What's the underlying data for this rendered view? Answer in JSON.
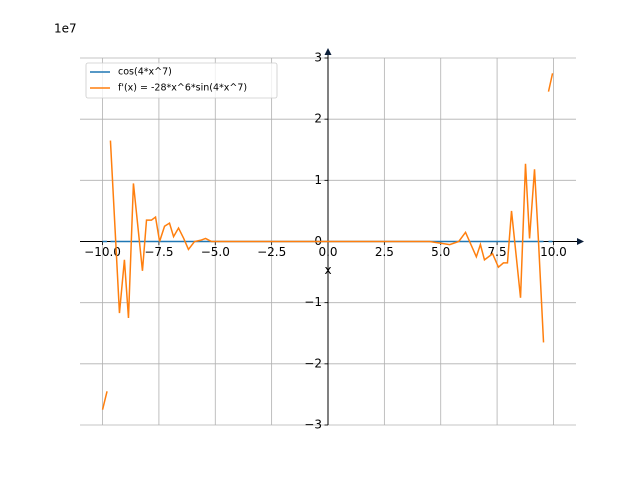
{
  "chart_data": {
    "type": "line",
    "offset_label": "1e7",
    "xlabel": "x",
    "x": [
      -10,
      -9.8,
      -9.75,
      -9.65,
      -9.25,
      -9.03,
      -8.85,
      -8.63,
      -8.23,
      -8.05,
      -7.83,
      -7.65,
      -7.47,
      -7.25,
      -7.03,
      -6.85,
      -6.63,
      -6.4,
      -6.19,
      -5.92,
      -5.65,
      -5.43,
      -5.17,
      -4.5,
      -2,
      0,
      2,
      4.5,
      5.4,
      5.8,
      6.1,
      6.58,
      6.76,
      6.94,
      7.3,
      7.56,
      7.78,
      7.96,
      8.14,
      8.54,
      8.76,
      8.94,
      9.16,
      9.33,
      9.56,
      9.7,
      9.78,
      9.96
    ],
    "series": [
      {
        "name": "cos(4*x^7)",
        "color": "#1f77b4",
        "values": [
          0,
          0,
          null,
          0,
          0,
          0,
          0,
          0,
          0,
          0,
          0,
          0,
          0,
          0,
          0,
          0,
          0,
          0,
          0,
          0,
          0,
          0,
          0,
          0,
          0,
          0,
          0,
          0,
          0,
          0,
          0,
          0,
          0,
          0,
          0,
          0,
          0,
          0,
          0,
          0,
          0,
          0,
          0,
          0,
          0,
          null,
          0,
          0
        ]
      },
      {
        "name": "f'(x) = -28*x^6*sin(4*x^7)",
        "color": "#ff7f0e",
        "values": [
          -2.75,
          -2.45,
          null,
          1.65,
          -1.17,
          -0.3,
          -1.25,
          0.95,
          -0.48,
          0.35,
          0.35,
          0.4,
          0,
          0.25,
          0.3,
          0.08,
          0.22,
          0.05,
          -0.13,
          0,
          0.02,
          0.05,
          0,
          0,
          0,
          0,
          0,
          0,
          -0.05,
          0,
          0.15,
          -0.25,
          -0.05,
          -0.3,
          -0.2,
          -0.42,
          -0.35,
          -0.35,
          0.5,
          -0.92,
          1.27,
          0.05,
          1.18,
          0.05,
          -1.65,
          null,
          2.45,
          2.75
        ]
      }
    ],
    "xlim": [
      -11,
      11
    ],
    "ylim": [
      -3,
      3
    ],
    "xticks": [
      {
        "value": -10,
        "label": "−10.0"
      },
      {
        "value": -7.5,
        "label": "−7.5"
      },
      {
        "value": -5,
        "label": "−5.0"
      },
      {
        "value": -2.5,
        "label": "−2.5"
      },
      {
        "value": 0,
        "label": "0.0"
      },
      {
        "value": 2.5,
        "label": "2.5"
      },
      {
        "value": 5,
        "label": "5.0"
      },
      {
        "value": 7.5,
        "label": "7.5"
      },
      {
        "value": 10,
        "label": "10.0"
      }
    ],
    "yticks": [
      {
        "value": -3,
        "label": "−3"
      },
      {
        "value": -2,
        "label": "−2"
      },
      {
        "value": -1,
        "label": "−1"
      },
      0,
      1,
      2,
      3
    ],
    "grid": true,
    "legend": "upper left"
  }
}
